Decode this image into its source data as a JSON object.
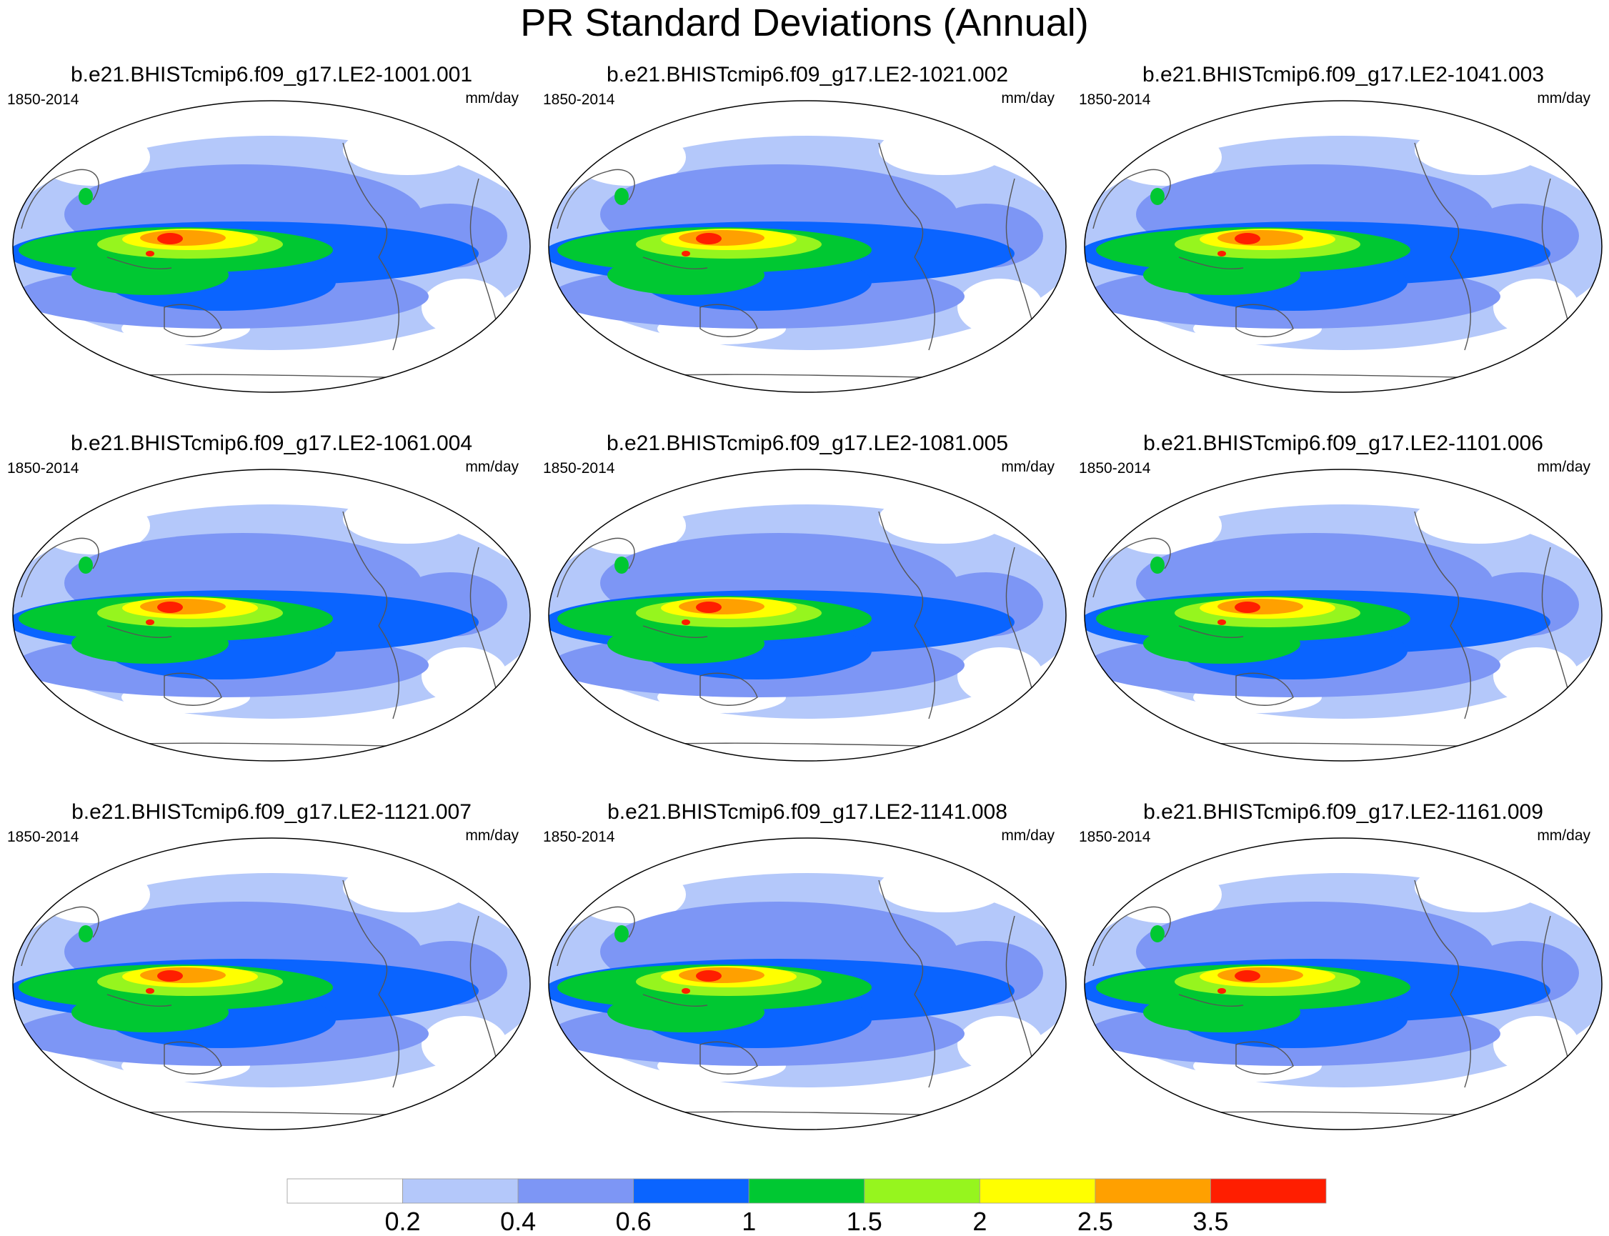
{
  "figure": {
    "title": "PR Standard Deviations (Annual)"
  },
  "panels": [
    {
      "title": "b.e21.BHISTcmip6.f09_g17.LE2-1001.001",
      "period": "1850-2014",
      "units": "mm/day"
    },
    {
      "title": "b.e21.BHISTcmip6.f09_g17.LE2-1021.002",
      "period": "1850-2014",
      "units": "mm/day"
    },
    {
      "title": "b.e21.BHISTcmip6.f09_g17.LE2-1041.003",
      "period": "1850-2014",
      "units": "mm/day"
    },
    {
      "title": "b.e21.BHISTcmip6.f09_g17.LE2-1061.004",
      "period": "1850-2014",
      "units": "mm/day"
    },
    {
      "title": "b.e21.BHISTcmip6.f09_g17.LE2-1081.005",
      "period": "1850-2014",
      "units": "mm/day"
    },
    {
      "title": "b.e21.BHISTcmip6.f09_g17.LE2-1101.006",
      "period": "1850-2014",
      "units": "mm/day"
    },
    {
      "title": "b.e21.BHISTcmip6.f09_g17.LE2-1121.007",
      "period": "1850-2014",
      "units": "mm/day"
    },
    {
      "title": "b.e21.BHISTcmip6.f09_g17.LE2-1141.008",
      "period": "1850-2014",
      "units": "mm/day"
    },
    {
      "title": "b.e21.BHISTcmip6.f09_g17.LE2-1161.009",
      "period": "1850-2014",
      "units": "mm/day"
    }
  ],
  "colorbar": {
    "labels": [
      "0.2",
      "0.4",
      "0.6",
      "1",
      "1.5",
      "2",
      "2.5",
      "3.5"
    ],
    "colors": [
      "#ffffff",
      "#b4c8fa",
      "#7d96f5",
      "#0a64ff",
      "#00c832",
      "#96f51e",
      "#ffff00",
      "#ffa000",
      "#ff1e00"
    ]
  },
  "palette": {
    "very_low": "#ffffff",
    "low": "#b4c8fa",
    "mid_low": "#7d96f5",
    "mid": "#0a64ff",
    "green": "#00c832",
    "lime": "#96f51e",
    "yellow": "#ffff00",
    "orange": "#ffa000",
    "red": "#ff1e00",
    "coastline": "#555555"
  }
}
